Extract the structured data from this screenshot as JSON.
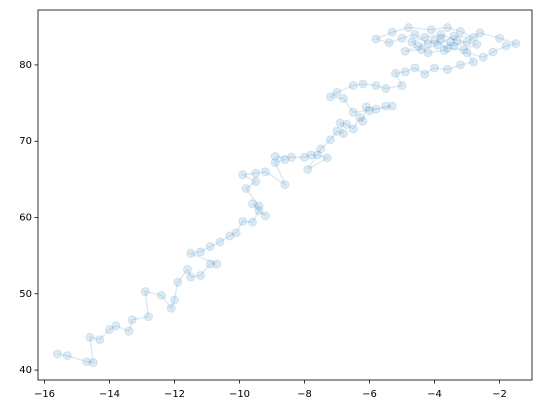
{
  "chart_data": {
    "type": "line",
    "color": "#1f77b4",
    "marker": "o",
    "x": [
      -15.6,
      -15.3,
      -14.7,
      -14.5,
      -14.6,
      -14.3,
      -14.0,
      -13.8,
      -13.4,
      -13.3,
      -12.8,
      -12.9,
      -12.4,
      -12.1,
      -12.0,
      -11.9,
      -11.6,
      -11.5,
      -11.2,
      -10.9,
      -10.7,
      -11.5,
      -11.2,
      -10.9,
      -10.6,
      -10.3,
      -10.1,
      -9.9,
      -9.6,
      -9.4,
      -9.2,
      -9.6,
      -9.4,
      -9.8,
      -9.5,
      -9.9,
      -9.5,
      -9.2,
      -8.6,
      -8.9,
      -8.6,
      -8.9,
      -8.4,
      -8.0,
      -7.8,
      -7.6,
      -7.3,
      -7.9,
      -7.5,
      -7.2,
      -7.0,
      -6.8,
      -6.9,
      -6.7,
      -6.5,
      -6.3,
      -6.2,
      -6.1,
      -5.8,
      -5.5,
      -5.3,
      -6.0,
      -6.5,
      -6.8,
      -7.2,
      -7.0,
      -6.5,
      -6.2,
      -5.8,
      -5.5,
      -5.0,
      -5.2,
      -4.9,
      -4.6,
      -4.3,
      -4.0,
      -3.6,
      -3.2,
      -2.8,
      -3.0,
      -2.5,
      -2.2,
      -1.8,
      -1.5,
      -2.0,
      -2.6,
      -3.0,
      -3.4,
      -3.8,
      -4.2,
      -4.6,
      -5.0,
      -5.4,
      -5.8,
      -5.3,
      -4.8,
      -4.1,
      -3.6,
      -3.2,
      -2.8,
      -3.4,
      -3.9,
      -4.4,
      -4.9,
      -4.5,
      -4.0,
      -3.6,
      -3.1,
      -2.7,
      -3.3,
      -3.8,
      -4.3,
      -4.7,
      -4.2,
      -3.7,
      -3.5
    ],
    "values": [
      42.1,
      41.9,
      41.1,
      41.0,
      44.3,
      44.0,
      45.3,
      45.8,
      45.1,
      46.6,
      47.0,
      50.3,
      49.8,
      48.1,
      49.2,
      51.5,
      53.2,
      52.2,
      52.4,
      53.9,
      53.9,
      55.3,
      55.5,
      56.2,
      56.8,
      57.6,
      58.0,
      59.5,
      59.4,
      60.9,
      60.2,
      61.8,
      61.5,
      63.8,
      64.7,
      65.6,
      65.8,
      66.0,
      64.3,
      67.2,
      67.6,
      68.0,
      67.9,
      67.9,
      68.2,
      68.2,
      67.8,
      66.3,
      69.0,
      70.2,
      71.3,
      71.0,
      72.4,
      72.2,
      71.6,
      73.1,
      72.6,
      74.5,
      74.2,
      74.6,
      74.6,
      74.0,
      73.8,
      75.6,
      75.8,
      76.4,
      77.3,
      77.5,
      77.3,
      76.9,
      77.3,
      78.9,
      79.1,
      79.6,
      78.8,
      79.6,
      79.4,
      80.0,
      80.4,
      81.6,
      81.0,
      81.7,
      82.5,
      82.8,
      83.5,
      84.2,
      83.0,
      82.5,
      83.4,
      82.8,
      84.0,
      83.5,
      82.9,
      83.4,
      84.3,
      84.9,
      84.6,
      84.9,
      84.4,
      83.6,
      83.8,
      82.6,
      82.0,
      81.8,
      82.5,
      83.2,
      82.2,
      82.0,
      82.7,
      83.2,
      84.0,
      83.6,
      83.0,
      81.6,
      81.9,
      83.0
    ],
    "xlim": [
      -16.2,
      -1.0
    ],
    "ylim": [
      38.7,
      87.2
    ],
    "xticks": [
      {
        "value": -16,
        "label": "−16"
      },
      {
        "value": -14,
        "label": "−14"
      },
      {
        "value": -12,
        "label": "−12"
      },
      {
        "value": -10,
        "label": "−10"
      },
      {
        "value": -8,
        "label": "−8"
      },
      {
        "value": -6,
        "label": "−6"
      },
      {
        "value": -4,
        "label": "−4"
      },
      {
        "value": -2,
        "label": "−2"
      }
    ],
    "yticks": [
      40,
      50,
      60,
      70,
      80
    ]
  }
}
